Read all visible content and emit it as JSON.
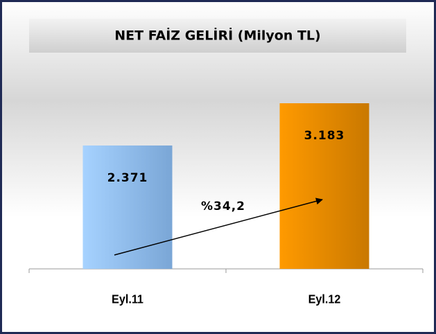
{
  "chart_data": {
    "type": "bar",
    "title": "NET FAİZ GELİRİ (Milyon TL)",
    "categories": [
      "Eyl.11",
      "Eyl.12"
    ],
    "series": [
      {
        "colors": [
          "#8fbdf0",
          "#f39200"
        ],
        "values": [
          2371,
          3183
        ],
        "value_labels": [
          "2.371",
          "3.183"
        ]
      }
    ],
    "annotations": [
      "%34,2"
    ]
  }
}
